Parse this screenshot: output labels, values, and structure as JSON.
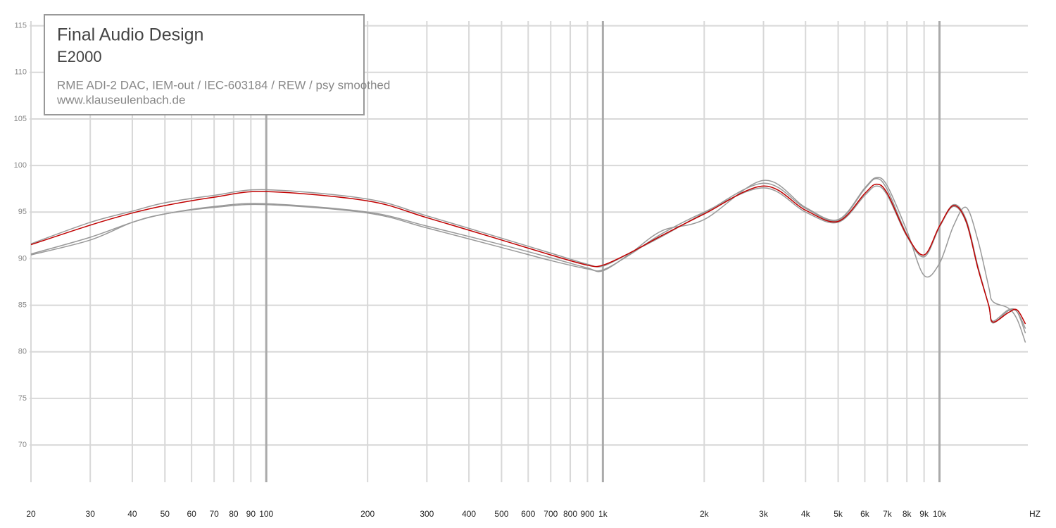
{
  "chart_data": {
    "type": "line",
    "title": "Final Audio Design",
    "subtitle": "E2000",
    "annotations": [
      "RME ADI-2 DAC, IEM-out / IEC-603184 / REW / psy smoothed",
      "www.klauseulenbach.de"
    ],
    "x_label": "HZ",
    "log_x": true,
    "grid": true,
    "x": [
      20,
      30,
      40,
      50,
      70,
      100,
      200,
      300,
      500,
      700,
      900,
      1000,
      1200,
      1500,
      2000,
      3000,
      4000,
      5000,
      6000,
      6500,
      7000,
      8000,
      9000,
      10000,
      11000,
      12000,
      13000,
      14000,
      14400,
      16000,
      17000,
      18000
    ],
    "series": [
      {
        "color": "#999999",
        "values": [
          91.6,
          93.9,
          95.1,
          96.0,
          96.8,
          97.4,
          96.4,
          94.6,
          92.2,
          90.6,
          89.4,
          89.2,
          90.6,
          92.4,
          94.9,
          98.1,
          95.4,
          94.1,
          97.5,
          98.6,
          97.4,
          92.6,
          90.2,
          93.4,
          95.8,
          94.2,
          89.2,
          85.0,
          83.3,
          84.5,
          84.3,
          82.0
        ]
      },
      {
        "color": "#999999",
        "values": [
          90.5,
          92.3,
          93.9,
          94.8,
          95.6,
          95.9,
          95.0,
          93.5,
          91.5,
          90.1,
          89.0,
          88.7,
          90.5,
          93.0,
          94.2,
          98.4,
          95.5,
          94.2,
          97.6,
          98.7,
          97.8,
          93.0,
          88.2,
          89.5,
          93.5,
          95.5,
          92.0,
          87.0,
          85.4,
          84.7,
          83.5,
          81.0
        ]
      },
      {
        "color": "#999999",
        "values": [
          90.4,
          92.0,
          93.9,
          94.8,
          95.5,
          95.8,
          94.9,
          93.3,
          91.2,
          89.8,
          88.9,
          88.8,
          90.4,
          92.7,
          95.0,
          97.6,
          95.0,
          93.9,
          96.8,
          97.8,
          96.8,
          92.4,
          90.2,
          93.4,
          95.6,
          93.9,
          89.0,
          85.0,
          83.1,
          84.4,
          84.3,
          82.5
        ]
      },
      {
        "color": "#c00000",
        "values": [
          91.5,
          93.6,
          94.9,
          95.7,
          96.6,
          97.2,
          96.2,
          94.4,
          92.0,
          90.4,
          89.3,
          89.3,
          90.6,
          92.5,
          94.8,
          97.8,
          95.2,
          94.0,
          97.0,
          98.0,
          97.0,
          92.5,
          90.4,
          93.5,
          95.7,
          94.0,
          89.0,
          85.0,
          83.2,
          84.2,
          84.5,
          83.0
        ]
      }
    ],
    "xlim": [
      20,
      18300
    ],
    "ylim": [
      66,
      115.5
    ],
    "yticks": [
      70,
      75,
      80,
      85,
      90,
      95,
      100,
      105,
      110,
      115
    ],
    "xticks": [
      20,
      30,
      40,
      50,
      60,
      70,
      80,
      90,
      100,
      200,
      300,
      400,
      500,
      600,
      700,
      800,
      900,
      {
        "value": 1000,
        "label": "1k"
      },
      {
        "value": 2000,
        "label": "2k"
      },
      {
        "value": 3000,
        "label": "3k"
      },
      {
        "value": 4000,
        "label": "4k"
      },
      {
        "value": 5000,
        "label": "5k"
      },
      {
        "value": 6000,
        "label": "6k"
      },
      {
        "value": 7000,
        "label": "7k"
      },
      {
        "value": 8000,
        "label": "8k"
      },
      {
        "value": 9000,
        "label": "9k"
      },
      {
        "value": 10000,
        "label": "10k"
      }
    ]
  }
}
